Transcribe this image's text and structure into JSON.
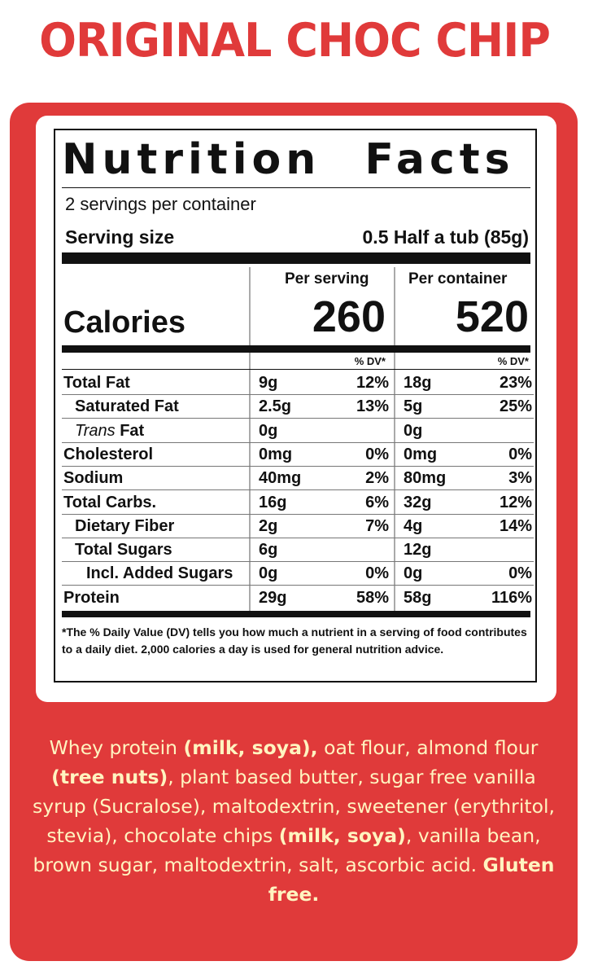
{
  "title": "ORIGINAL CHOC CHIP",
  "label": {
    "heading": "Nutrition Facts",
    "servings_per_container": "2 servings per container",
    "serving_size_label": "Serving size",
    "serving_size_value": "0.5 Half a tub (85g)",
    "col_per_serving": "Per serving",
    "col_per_container": "Per container",
    "calories_label": "Calories",
    "calories_per_serving": "260",
    "calories_per_container": "520",
    "dv_header": "% DV*",
    "rows": [
      {
        "name": "Total Fat",
        "s_amt": "9g",
        "s_dv": "12%",
        "c_amt": "18g",
        "c_dv": "23%"
      },
      {
        "name": "Saturated Fat",
        "s_amt": "2.5g",
        "s_dv": "13%",
        "c_amt": "5g",
        "c_dv": "25%"
      },
      {
        "name_prefix": "Trans",
        "name": " Fat",
        "s_amt": "0g",
        "s_dv": "",
        "c_amt": "0g",
        "c_dv": ""
      },
      {
        "name": "Cholesterol",
        "s_amt": "0mg",
        "s_dv": "0%",
        "c_amt": "0mg",
        "c_dv": "0%"
      },
      {
        "name": "Sodium",
        "s_amt": "40mg",
        "s_dv": "2%",
        "c_amt": "80mg",
        "c_dv": "3%"
      },
      {
        "name": "Total Carbs.",
        "s_amt": "16g",
        "s_dv": "6%",
        "c_amt": "32g",
        "c_dv": "12%"
      },
      {
        "name": "Dietary Fiber",
        "s_amt": "2g",
        "s_dv": "7%",
        "c_amt": "4g",
        "c_dv": "14%"
      },
      {
        "name": "Total Sugars",
        "s_amt": "6g",
        "s_dv": "",
        "c_amt": "12g",
        "c_dv": ""
      },
      {
        "name": "Incl. Added Sugars",
        "s_amt": "0g",
        "s_dv": "0%",
        "c_amt": "0g",
        "c_dv": "0%"
      },
      {
        "name": "Protein",
        "s_amt": "29g",
        "s_dv": "58%",
        "c_amt": "58g",
        "c_dv": "116%"
      }
    ],
    "footnote": "*The % Daily Value (DV) tells you how much a nutrient in a serving of food contributes to a daily diet. 2,000 calories a day is used for general nutrition advice."
  },
  "ingredients": {
    "segments": [
      {
        "text": "Whey protein ",
        "bold": false
      },
      {
        "text": "(milk, soya),",
        "bold": true
      },
      {
        "text": " oat flour, almond flour ",
        "bold": false
      },
      {
        "text": "(tree nuts)",
        "bold": true
      },
      {
        "text": ", plant based butter, sugar free vanilla syrup (Sucralose), maltodextrin, sweetener (erythritol, stevia), chocolate chips ",
        "bold": false
      },
      {
        "text": "(milk, soya)",
        "bold": true
      },
      {
        "text": ", vanilla bean, brown sugar, maltodextrin, salt, ascorbic acid. ",
        "bold": false
      },
      {
        "text": "Gluten free.",
        "bold": true
      }
    ]
  },
  "colors": {
    "brand_red": "#e03a3a",
    "ingredient_text": "#fff4c0"
  }
}
